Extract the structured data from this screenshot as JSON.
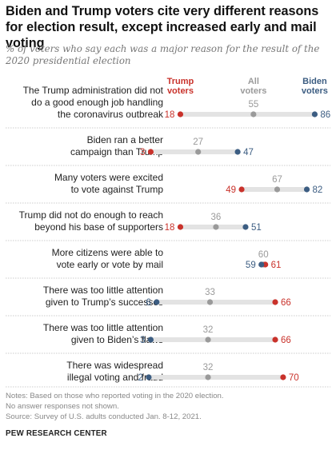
{
  "header": {
    "title": "Biden and Trump voters cite very different reasons for election result, except increased early and mail voting",
    "subtitle": "% of voters who say each was a major reason for the result of the 2020 presidential election"
  },
  "footer": {
    "notes": [
      "Notes: Based on those who reported voting in the 2020 election.",
      "No answer responses not shown.",
      "Source: Survey of U.S. adults conducted Jan. 8-12, 2021."
    ],
    "brand": "PEW RESEARCH CENTER"
  },
  "colors": {
    "trump": "#c9322b",
    "all": "#9a9a9a",
    "biden": "#3c5d82",
    "bar": "#e3e3e3",
    "divider": "#bdbdbd"
  },
  "chart_data": {
    "type": "dot",
    "series": [
      {
        "name": "Trump voters",
        "key": "trump"
      },
      {
        "name": "All voters",
        "key": "all"
      },
      {
        "name": "Biden voters",
        "key": "biden"
      }
    ],
    "rows": [
      {
        "label": [
          "The Trump administration did not",
          "do a good enough job handling",
          "the coronavirus outbreak"
        ],
        "trump": 18,
        "all": 55,
        "biden": 86
      },
      {
        "label": [
          "Biden ran a better",
          "campaign than Trump"
        ],
        "trump": 3,
        "all": 27,
        "biden": 47
      },
      {
        "label": [
          "Many voters were excited",
          "to vote against Trump"
        ],
        "trump": 49,
        "all": 67,
        "biden": 82
      },
      {
        "label": [
          "Trump did not do enough to reach",
          "beyond his base of supporters"
        ],
        "trump": 18,
        "all": 36,
        "biden": 51
      },
      {
        "label": [
          "More citizens were able to",
          "vote early or vote by mail"
        ],
        "trump": 61,
        "all": 60,
        "biden": 59
      },
      {
        "label": [
          "There was too little attention",
          "given to Trump’s successes"
        ],
        "trump": 66,
        "all": 33,
        "biden": 6
      },
      {
        "label": [
          "There was too little attention",
          "given to Biden’s flaws"
        ],
        "trump": 66,
        "all": 32,
        "biden": 3
      },
      {
        "label": [
          "There was widespread",
          "illegal voting and fraud"
        ],
        "trump": 70,
        "all": 32,
        "biden": 2
      }
    ],
    "xlim": [
      0,
      100
    ]
  }
}
